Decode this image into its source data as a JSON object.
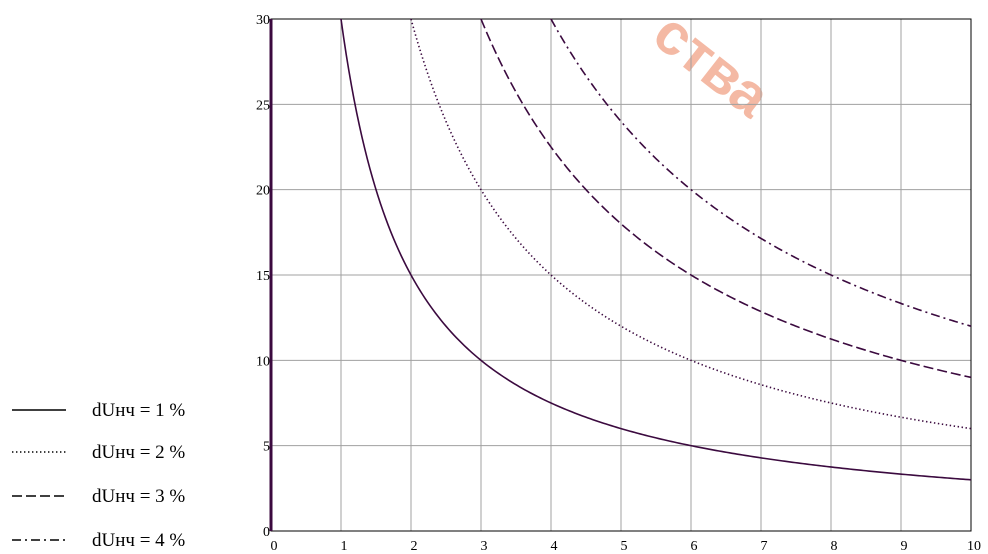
{
  "watermark": {
    "text": "ства",
    "color": "#e8542a"
  },
  "chart_data": {
    "type": "line",
    "title": "",
    "xlabel": "",
    "ylabel": "",
    "xlim": [
      0,
      10
    ],
    "ylim": [
      0,
      30
    ],
    "x_ticks": [
      "0",
      "1",
      "2",
      "3",
      "4",
      "5",
      "6",
      "7",
      "8",
      "9",
      "10"
    ],
    "y_ticks": [
      "0",
      "5",
      "10",
      "15",
      "20",
      "25",
      "30"
    ],
    "grid": true,
    "legend_position": "left",
    "line_color": "#3b0a3f",
    "series": [
      {
        "name": "dUнч = 1 %",
        "style": "solid",
        "x": [
          1,
          1.5,
          2,
          3,
          4,
          5,
          6,
          7,
          8,
          9,
          10
        ],
        "y": [
          30,
          20,
          15,
          10,
          7.5,
          6,
          5,
          4.3,
          3.75,
          3.3,
          3
        ]
      },
      {
        "name": "dUнч = 2 %",
        "style": "dotted",
        "x": [
          2,
          2.5,
          3,
          4,
          5,
          6,
          7,
          8,
          9,
          10
        ],
        "y": [
          30,
          24,
          20,
          15,
          12,
          10,
          8.6,
          7.5,
          6.7,
          6
        ]
      },
      {
        "name": "dUнч = 3 %",
        "style": "dashed",
        "x": [
          3,
          3.5,
          4,
          5,
          6,
          7,
          8,
          9,
          10
        ],
        "y": [
          30,
          25.7,
          22.5,
          18,
          15,
          12.9,
          11.25,
          10,
          9
        ]
      },
      {
        "name": "dUнч = 4 %",
        "style": "dash-dot",
        "x": [
          4,
          4.5,
          5,
          6,
          7,
          8,
          9,
          10
        ],
        "y": [
          30,
          26.7,
          24,
          20,
          17.1,
          15,
          13.3,
          12
        ]
      }
    ]
  }
}
